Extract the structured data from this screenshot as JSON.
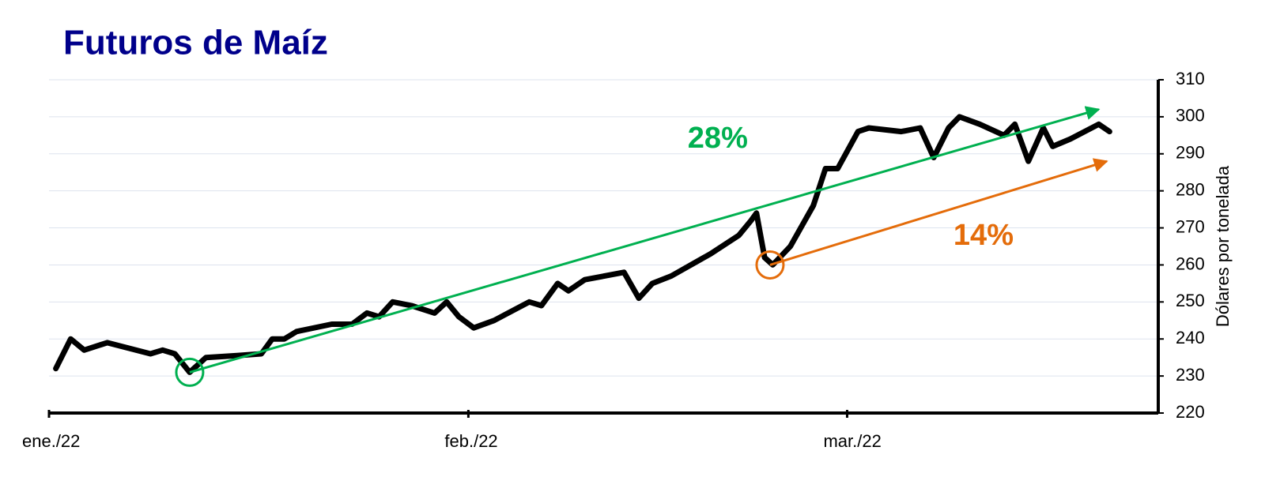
{
  "chart_data": {
    "type": "line",
    "title": "Futuros de Maíz",
    "ylabel": "Dólares por tonelada",
    "x": [
      0.5,
      1.6,
      2.6,
      4.3,
      7.5,
      8.4,
      9.3,
      10.4,
      11.6,
      13.9,
      15.7,
      16.5,
      17.4,
      18.3,
      20.9,
      22.4,
      23.5,
      24.4,
      25.4,
      26.8,
      28.5,
      29.4,
      30.3,
      31.4,
      32.9,
      35.5,
      36.4,
      37.6,
      38.4,
      39.6,
      42.5,
      43.6,
      44.6,
      46.0,
      48.9,
      51.0,
      51.9,
      52.3,
      52.9,
      53.5,
      54.8,
      56.5,
      57.4,
      58.3,
      59.8,
      60.6,
      63.0,
      64.4,
      65.4,
      66.5,
      67.3,
      68.8,
      70.6,
      71.4,
      72.4,
      73.5,
      74.2,
      75.5,
      77.6,
      78.4
    ],
    "values": [
      232,
      240,
      237,
      239,
      236,
      237,
      236,
      231,
      235,
      235.5,
      236,
      240,
      240,
      242,
      244,
      244,
      247,
      246,
      250,
      249,
      247,
      250,
      246,
      243,
      245,
      250,
      249,
      255,
      253,
      256,
      258,
      251,
      255,
      257,
      263,
      268,
      272,
      274,
      262,
      260,
      265,
      276,
      286,
      286,
      296,
      297,
      296,
      297,
      289,
      297,
      300,
      298,
      295,
      298,
      288,
      297,
      292,
      294,
      298,
      296
    ],
    "color": "#000000",
    "xlim": [
      0,
      82
    ],
    "xticks": [
      {
        "value": 0,
        "label": "ene./22"
      },
      {
        "value": 31,
        "label": "feb./22"
      },
      {
        "value": 59,
        "label": "mar./22"
      }
    ],
    "ylim": [
      220,
      310
    ],
    "yticks": [
      220,
      230,
      240,
      250,
      260,
      270,
      280,
      290,
      300,
      310
    ],
    "grid": true,
    "annotations": [
      {
        "text": "28%",
        "color": "#00b050",
        "from": [
          10.4,
          231
        ],
        "to": [
          77.6,
          302
        ]
      },
      {
        "text": "14%",
        "color": "#e46c0a",
        "from": [
          53.3,
          260
        ],
        "to": [
          78.2,
          288
        ]
      }
    ]
  }
}
